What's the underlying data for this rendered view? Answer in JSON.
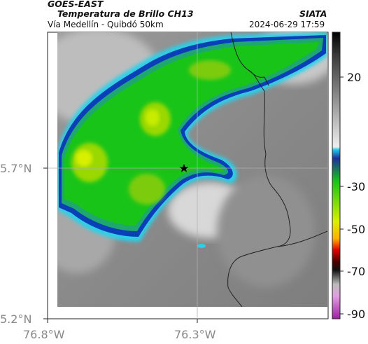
{
  "header": {
    "satellite": "GOES-EAST",
    "product": "Temperatura de Brillo CH13",
    "subtitle": "Vía Medellín - Quibdó 50km",
    "source": "SIATA",
    "datetime": "2024-06-29 17:59"
  },
  "axes": {
    "y_ticks": [
      "5.7°N",
      "5.2°N"
    ],
    "x_ticks": [
      "76.8°W",
      "76.3°W"
    ]
  },
  "colorbar": {
    "ticks": [
      "20",
      "-30",
      "-50",
      "-70",
      "-90"
    ]
  },
  "marker": {
    "name": "star-marker"
  },
  "colors": {
    "cloud_green": "#19c419",
    "cloud_yellow": "#d8f000",
    "edge_blue": "#0a3fb8",
    "edge_cyan": "#2ad0e8",
    "land_gray": "#8c8c8c"
  }
}
